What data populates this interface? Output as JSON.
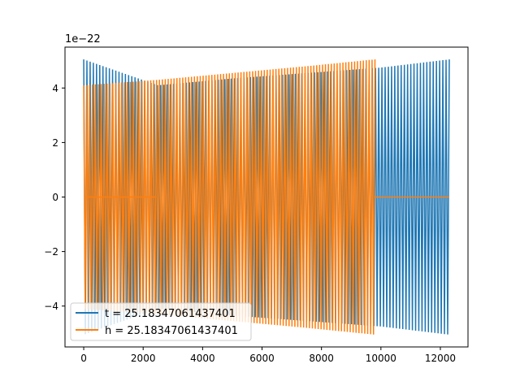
{
  "chart_data": {
    "type": "line",
    "title": "",
    "xlabel": "",
    "ylabel": "",
    "y_offset_label": "1e−22",
    "xlim": [
      -630,
      12930
    ],
    "ylim": [
      -5.5,
      5.5
    ],
    "x_ticks": [
      0,
      2000,
      4000,
      6000,
      8000,
      10000,
      12000
    ],
    "x_tick_labels": [
      "0",
      "2000",
      "4000",
      "6000",
      "8000",
      "10000",
      "12000"
    ],
    "y_ticks": [
      -4,
      -2,
      0,
      2,
      4
    ],
    "y_tick_labels": [
      "−4",
      "−2",
      "0",
      "2",
      "4"
    ],
    "grid": false,
    "legend": {
      "placement": "lower-left"
    },
    "series": [
      {
        "name": "t = 25.18347061437401",
        "color": "#1f77b4",
        "approx_envelope": [
          {
            "x": 0,
            "amplitude": 5.05
          },
          {
            "x": 2500,
            "amplitude": 4.1
          },
          {
            "x": 5000,
            "amplitude": 4.35
          },
          {
            "x": 7500,
            "amplitude": 4.55
          },
          {
            "x": 10000,
            "amplitude": 4.75
          },
          {
            "x": 12300,
            "amplitude": 5.05
          }
        ],
        "approx_oscillation_count": 114,
        "x_range": [
          0,
          12300
        ]
      },
      {
        "name": "h = 25.18347061437401",
        "color": "#ff7f0e",
        "approx_envelope": [
          {
            "x": 0,
            "amplitude": 4.1
          },
          {
            "x": 2500,
            "amplitude": 4.3
          },
          {
            "x": 5000,
            "amplitude": 4.55
          },
          {
            "x": 7500,
            "amplitude": 4.8
          },
          {
            "x": 9800,
            "amplitude": 5.05
          }
        ],
        "approx_oscillation_count": 100,
        "x_range": [
          0,
          9800
        ],
        "flat_segments": [
          {
            "x_start": 100,
            "x_end": 2450,
            "y": 0
          },
          {
            "x_start": 9800,
            "x_end": 12300,
            "y": 0
          }
        ]
      }
    ]
  }
}
